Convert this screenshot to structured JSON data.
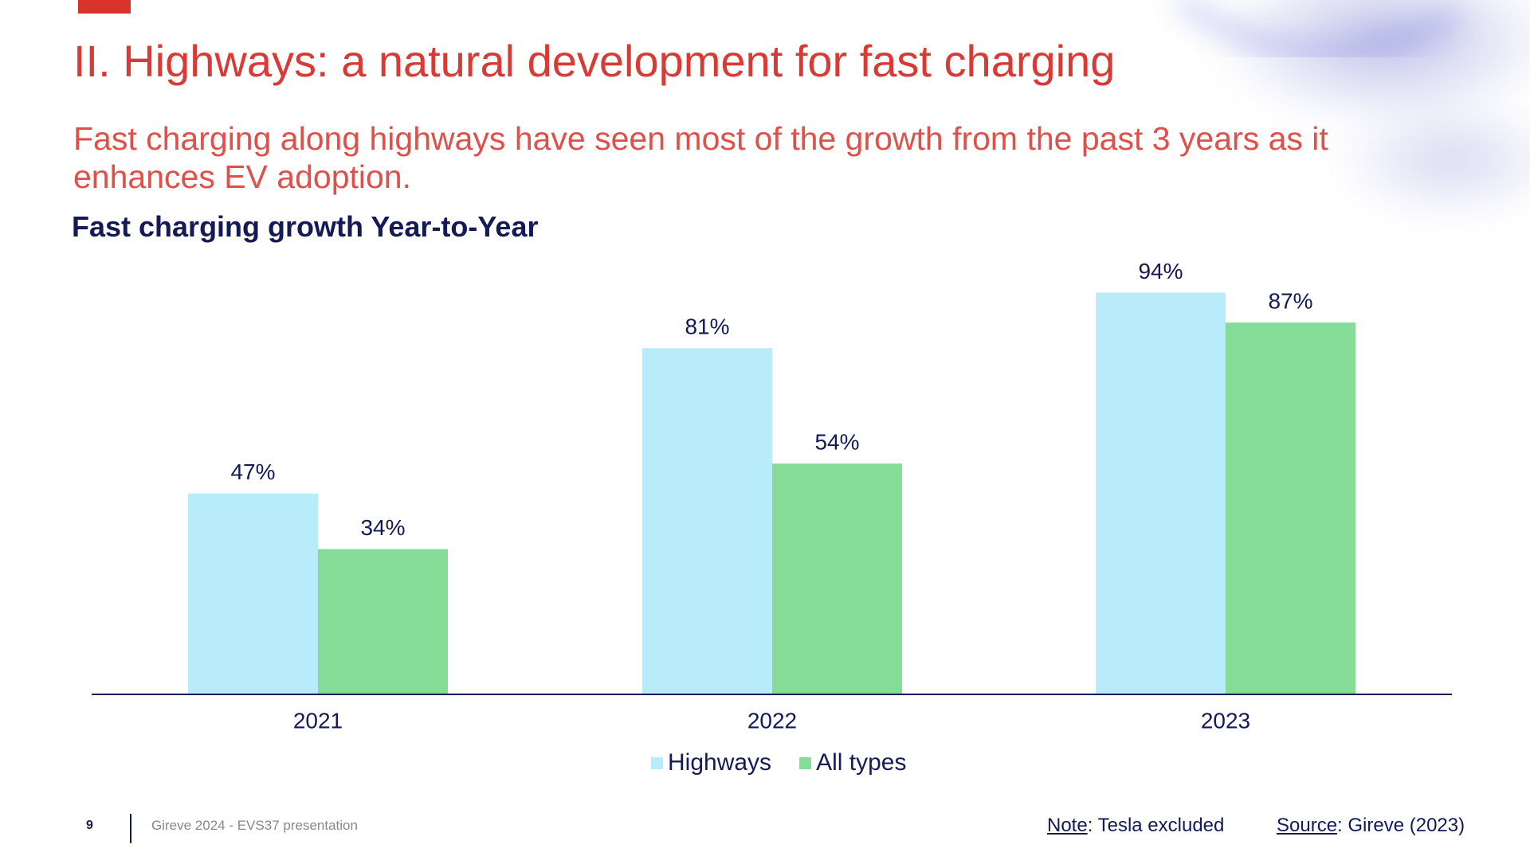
{
  "slide": {
    "title": "II. Highways: a natural development for fast charging",
    "subtitle": "Fast charging along highways have seen most of the growth from the past 3 years as it enhances EV adoption.",
    "page_number": "9",
    "footer": "Gireve 2024 - EVS37 presentation",
    "note_label": "Note",
    "note_text": ": Tesla excluded",
    "source_label": "Source",
    "source_text": ": Gireve (2023)"
  },
  "chart_data": {
    "type": "bar",
    "title": "Fast charging growth Year-to-Year",
    "categories": [
      "2021",
      "2022",
      "2023"
    ],
    "series": [
      {
        "name": "Highways",
        "color": "#b8ecfb",
        "values": [
          47,
          81,
          94
        ],
        "value_labels": [
          "47%",
          "81%",
          "94%"
        ]
      },
      {
        "name": "All types",
        "color": "#84dc96",
        "values": [
          34,
          54,
          87
        ],
        "value_labels": [
          "34%",
          "54%",
          "87%"
        ]
      }
    ]
  }
}
